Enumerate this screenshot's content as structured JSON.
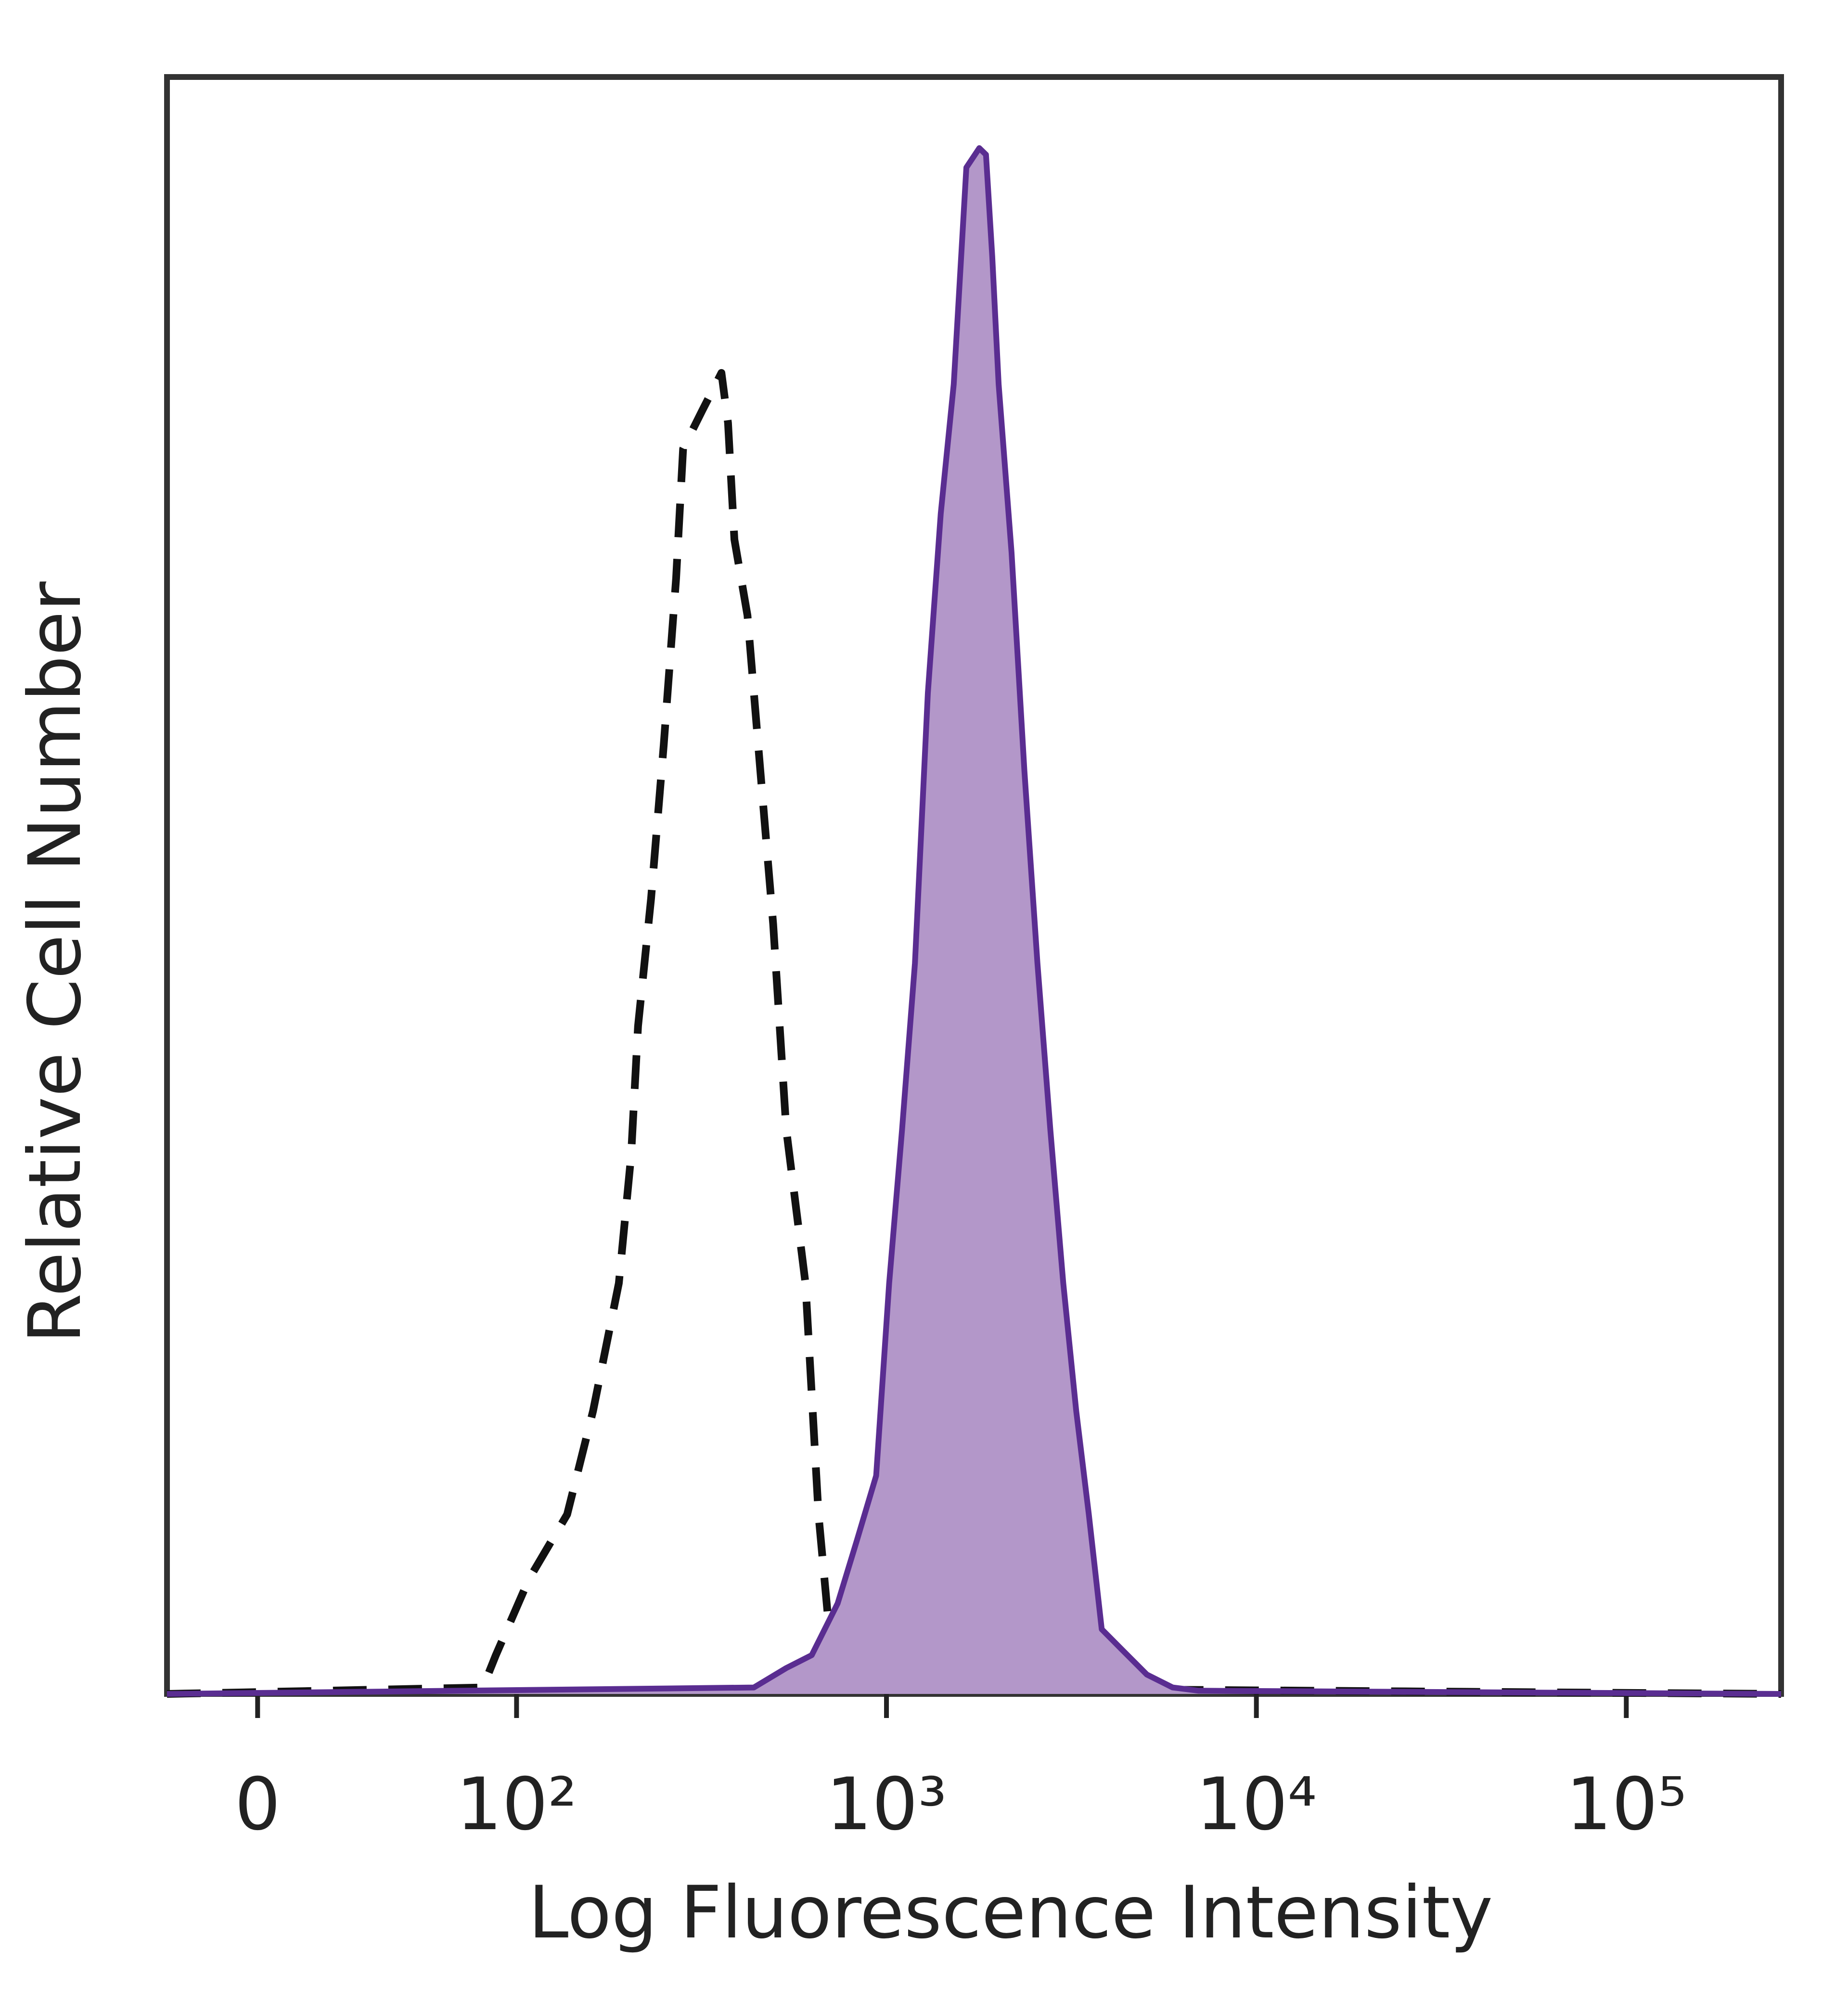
{
  "chart_data": {
    "type": "histogram_overlay",
    "xlabel": "Log Fluorescence Intensity",
    "ylabel": "Relative Cell Number",
    "xscale": "symlog",
    "linthresh": 100,
    "linscale": 0.7,
    "xlim": [
      -35,
      262144
    ],
    "xticks": [
      0,
      {
        "value": 100,
        "label": "10²"
      },
      {
        "value": 1000,
        "label": "10³"
      },
      {
        "value": 10000,
        "label": "10⁴"
      },
      {
        "value": 100000,
        "label": "10⁵"
      }
    ],
    "ylim": [
      0,
      100
    ],
    "series": [
      {
        "style": "dashed",
        "color": "#111111",
        "filled": false,
        "x": [
          -35,
          87,
          92,
          108,
          137,
          161,
          189,
          204,
          213,
          231,
          250,
          270,
          282,
          318,
          358,
          373,
          388,
          421,
          456,
          494,
          536,
          604,
          655,
          710,
          738,
          262144
        ],
        "values": [
          0,
          0.4,
          2.4,
          7.1,
          11.1,
          17.5,
          25.4,
          33.3,
          41.3,
          49.2,
          58.7,
          69.0,
          77.0,
          79.4,
          81.7,
          78.6,
          71.4,
          66.7,
          57.1,
          47.6,
          34.9,
          25.4,
          11.1,
          2.4,
          0.4,
          0
        ]
      },
      {
        "style": "solid",
        "color": "#5a2d91",
        "fill": "#b397c9",
        "filled": true,
        "x": [
          -35,
          438,
          536,
          628,
          738,
          832,
          938,
          1017,
          1102,
          1194,
          1294,
          1402,
          1520,
          1644,
          1782,
          1858,
          1932,
          2010,
          2178,
          2360,
          2559,
          2773,
          3006,
          3258,
          3524,
          3819,
          4305,
          5058,
          5940,
          6982,
          262144
        ],
        "values": [
          0,
          0.4,
          1.6,
          2.4,
          5.6,
          9.5,
          13.5,
          25.4,
          34.9,
          45.2,
          61.9,
          73.0,
          81.0,
          94.4,
          95.6,
          95.2,
          88.9,
          81.0,
          70.6,
          57.1,
          45.2,
          34.9,
          25.4,
          17.5,
          11.1,
          4.0,
          2.8,
          1.2,
          0.4,
          0.2,
          0
        ]
      }
    ]
  }
}
